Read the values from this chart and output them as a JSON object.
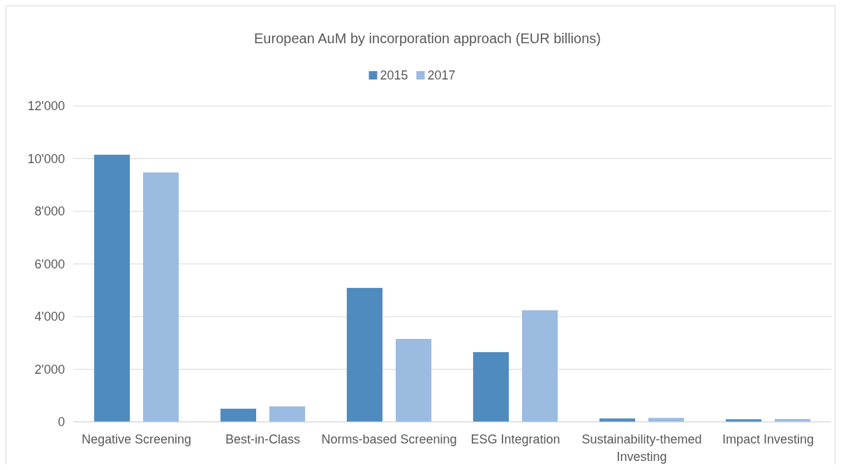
{
  "chart_data": {
    "type": "bar",
    "title": "European AuM by incorporation approach (EUR billions)",
    "categories": [
      "Negative Screening",
      "Best-in-Class",
      "Norms-based Screening",
      "ESG Integration",
      "Sustainability-themed Investing",
      "Impact Investing"
    ],
    "series": [
      {
        "name": "2015",
        "color": "#4f8bbf",
        "values": [
          10150,
          500,
          5090,
          2650,
          130,
          100
        ]
      },
      {
        "name": "2017",
        "color": "#9bbbe0",
        "values": [
          9475,
          590,
          3150,
          4240,
          150,
          110
        ]
      }
    ],
    "ylim": [
      0,
      12000
    ],
    "yticks": [
      {
        "value": 0,
        "label": "0"
      },
      {
        "value": 2000,
        "label": "2'000"
      },
      {
        "value": 4000,
        "label": "4'000"
      },
      {
        "value": 6000,
        "label": "6'000"
      },
      {
        "value": 8000,
        "label": "8'000"
      },
      {
        "value": 10000,
        "label": "10'000"
      },
      {
        "value": 12000,
        "label": "12'000"
      }
    ],
    "grid": "y",
    "legend": "top"
  }
}
